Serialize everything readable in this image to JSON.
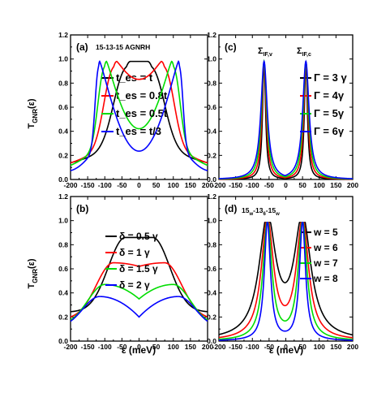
{
  "chart_data": [
    {
      "panel": "(a)",
      "type": "line",
      "annotation": "15-13-15 AGNRH",
      "ylabel": "T_GNR(ε)",
      "xlabel": "",
      "xlim": [
        -200,
        200
      ],
      "ylim": [
        0.0,
        1.2
      ],
      "xticks": [
        "-200",
        "-150",
        "-100",
        "-50",
        "0",
        "50",
        "100",
        "150",
        "200"
      ],
      "yticks": [
        "0.0",
        "0.2",
        "0.4",
        "0.6",
        "0.8",
        "1.0",
        "1.2"
      ],
      "legend_position": "center",
      "series": [
        {
          "name": "t_es = t",
          "color": "#000000",
          "kind": "bowl",
          "peak_x": 25,
          "peak_w": 55,
          "dip_depth": 0.0
        },
        {
          "name": "t_es = 0.8t",
          "color": "#ff0000",
          "kind": "bowl",
          "peak_x": 65,
          "peak_w": 42,
          "dip_depth": 0.2
        },
        {
          "name": "t_es = 0.5t",
          "color": "#00dd00",
          "kind": "bowl",
          "peak_x": 95,
          "peak_w": 28,
          "dip_depth": 0.75
        },
        {
          "name": "t_es = t/3",
          "color": "#0000ff",
          "kind": "bowl",
          "peak_x": 115,
          "peak_w": 15,
          "dip_depth": 1.0
        }
      ]
    },
    {
      "panel": "(c)",
      "type": "line",
      "annotations": [
        "Σ_IF,v",
        "Σ_IF,c"
      ],
      "ylabel": "",
      "xlabel": "",
      "xlim": [
        -200,
        200
      ],
      "ylim": [
        0.0,
        1.2
      ],
      "xticks": [
        "-200",
        "-150",
        "-100",
        "-50",
        "0",
        "50",
        "100",
        "150",
        "200"
      ],
      "yticks": [
        "0.0",
        "0.2",
        "0.4",
        "0.6",
        "0.8",
        "1.0",
        "1.2"
      ],
      "legend_position": "right",
      "series": [
        {
          "name": "Γ = 3 γ",
          "color": "#000000",
          "kind": "lorentz",
          "centers": [
            -65,
            60
          ],
          "gamma": 5.5
        },
        {
          "name": "Γ = 4γ",
          "color": "#ff0000",
          "kind": "lorentz",
          "centers": [
            -65,
            60
          ],
          "gamma": 7.5
        },
        {
          "name": "Γ = 5γ",
          "color": "#00dd00",
          "kind": "lorentz",
          "centers": [
            -65,
            60
          ],
          "gamma": 9.5
        },
        {
          "name": "Γ = 6γ",
          "color": "#0000ff",
          "kind": "lorentz",
          "centers": [
            -65,
            60
          ],
          "gamma": 11.5
        }
      ]
    },
    {
      "panel": "(b)",
      "type": "line",
      "ylabel": "T_GNR(ε)",
      "xlabel": "ε (meV)",
      "xlim": [
        -200,
        200
      ],
      "ylim": [
        0.0,
        1.2
      ],
      "xticks": [
        "-200",
        "-150",
        "-100",
        "-50",
        "0",
        "50",
        "100",
        "150",
        "200"
      ],
      "yticks": [
        "0.0",
        "0.2",
        "0.4",
        "0.6",
        "0.8",
        "1.0",
        "1.2"
      ],
      "legend_position": "top-center",
      "series": [
        {
          "name": "δ = 0.5 γ",
          "color": "#000000",
          "kind": "broad",
          "top": 0.86,
          "center": 0.86,
          "peak_x": 40
        },
        {
          "name": "δ = 1 γ",
          "color": "#ff0000",
          "kind": "broad",
          "top": 0.65,
          "center": 0.62,
          "peak_x": 75
        },
        {
          "name": "δ = 1.5 γ",
          "color": "#00dd00",
          "kind": "broad",
          "top": 0.47,
          "center": 0.35,
          "peak_x": 100
        },
        {
          "name": "δ = 2 γ",
          "color": "#0000ff",
          "kind": "broad",
          "top": 0.37,
          "center": 0.2,
          "peak_x": 115
        }
      ]
    },
    {
      "panel": "(d)",
      "type": "line",
      "annotation": "15_w-13_6-15_w",
      "ylabel": "",
      "xlabel": "ε (meV)",
      "xlim": [
        -200,
        200
      ],
      "ylim": [
        0.0,
        1.2
      ],
      "xticks": [
        "-200",
        "-150",
        "-100",
        "-50",
        "0",
        "50",
        "100",
        "150",
        "200"
      ],
      "yticks": [
        "0.0",
        "0.2",
        "0.4",
        "0.6",
        "0.8",
        "1.0",
        "1.2"
      ],
      "legend_position": "top-right",
      "series": [
        {
          "name": "w  = 5",
          "color": "#000000",
          "kind": "double",
          "centers": [
            -55,
            50
          ],
          "gamma": 30
        },
        {
          "name": "w  = 6",
          "color": "#ff0000",
          "kind": "double",
          "centers": [
            -55,
            50
          ],
          "gamma": 22
        },
        {
          "name": "w  = 7",
          "color": "#00dd00",
          "kind": "double",
          "centers": [
            -55,
            50
          ],
          "gamma": 16
        },
        {
          "name": "w  = 8",
          "color": "#0000ff",
          "kind": "double",
          "centers": [
            -55,
            50
          ],
          "gamma": 11
        }
      ]
    }
  ],
  "text": {
    "a_label": "(a)",
    "a_annot": "15-13-15 AGNRH",
    "b_label": "(b)",
    "c_label": "(c)",
    "d_label": "(d)",
    "d_annot": "15",
    "d_annot_sub1": "w",
    "d_annot_mid": "-13",
    "d_annot_sub2": "6",
    "d_annot_end": "-15",
    "d_annot_sub3": "w",
    "c_sig_v": "Σ",
    "c_sig_v_sub": "IF,v",
    "c_sig_c": "Σ",
    "c_sig_c_sub": "IF,c",
    "ylabel_main": "T",
    "ylabel_sub": "GNR",
    "ylabel_arg": "(ε)",
    "xlabel": "ε (meV)"
  }
}
